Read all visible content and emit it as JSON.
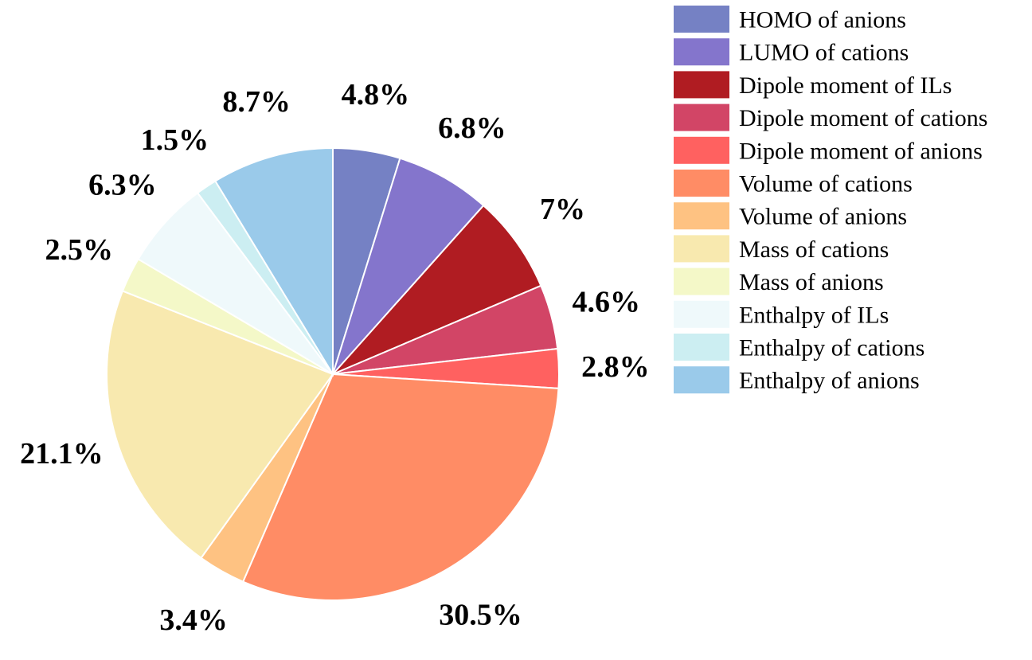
{
  "chart_data": {
    "type": "pie",
    "legend_position": "right",
    "slices": [
      {
        "label": "HOMO of anions",
        "value": 4.8,
        "value_label": "4.8%",
        "color": "#7581C4"
      },
      {
        "label": "LUMO of cations",
        "value": 6.8,
        "value_label": "6.8%",
        "color": "#8475CC"
      },
      {
        "label": "Dipole moment of ILs",
        "value": 7.0,
        "value_label": "7%",
        "color": "#B01C22"
      },
      {
        "label": "Dipole moment of cations",
        "value": 4.6,
        "value_label": "4.6%",
        "color": "#D24566"
      },
      {
        "label": "Dipole moment of anions",
        "value": 2.8,
        "value_label": "2.8%",
        "color": "#FF6160"
      },
      {
        "label": "Volume of cations",
        "value": 30.5,
        "value_label": "30.5%",
        "color": "#FF8C65"
      },
      {
        "label": "Volume of anions",
        "value": 3.4,
        "value_label": "3.4%",
        "color": "#FEC282"
      },
      {
        "label": "Mass of cations",
        "value": 21.1,
        "value_label": "21.1%",
        "color": "#F8E9AF"
      },
      {
        "label": "Mass of anions",
        "value": 2.5,
        "value_label": "2.5%",
        "color": "#F4F8C8"
      },
      {
        "label": "Enthalpy of ILs",
        "value": 6.3,
        "value_label": "6.3%",
        "color": "#EFF9FB"
      },
      {
        "label": "Enthalpy of cations",
        "value": 1.5,
        "value_label": "1.5%",
        "color": "#CCEEF2"
      },
      {
        "label": "Enthalpy of anions",
        "value": 8.7,
        "value_label": "8.7%",
        "color": "#9ACAEA"
      }
    ]
  }
}
